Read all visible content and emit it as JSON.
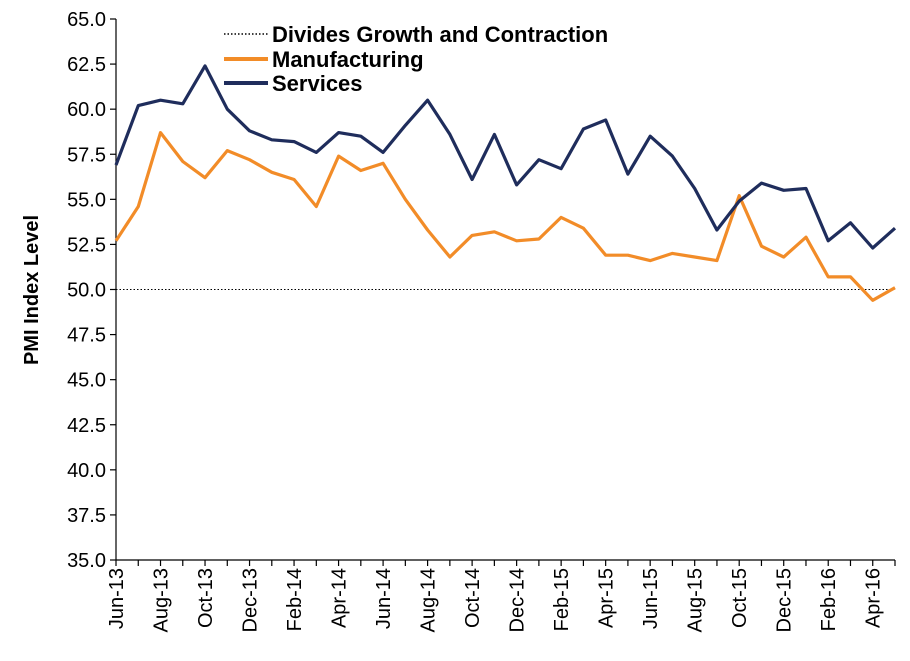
{
  "chart_data": {
    "type": "line",
    "ylabel": "PMI Index Level",
    "xlabel": "",
    "title": "",
    "ylim": [
      35.0,
      65.0
    ],
    "yticks": [
      "35.0",
      "37.5",
      "40.0",
      "42.5",
      "45.0",
      "47.5",
      "50.0",
      "52.5",
      "55.0",
      "57.5",
      "60.0",
      "62.5",
      "65.0"
    ],
    "x": [
      "Jun-13",
      "Jul-13",
      "Aug-13",
      "Sep-13",
      "Oct-13",
      "Nov-13",
      "Dec-13",
      "Jan-14",
      "Feb-14",
      "Mar-14",
      "Apr-14",
      "May-14",
      "Jun-14",
      "Jul-14",
      "Aug-14",
      "Sep-14",
      "Oct-14",
      "Nov-14",
      "Dec-14",
      "Jan-15",
      "Feb-15",
      "Mar-15",
      "Apr-15",
      "May-15",
      "Jun-15",
      "Jul-15",
      "Aug-15",
      "Sep-15",
      "Oct-15",
      "Nov-15",
      "Dec-15",
      "Jan-16",
      "Feb-16",
      "Mar-16",
      "Apr-16",
      "May-16"
    ],
    "xtick_labels": [
      "Jun-13",
      "Aug-13",
      "Oct-13",
      "Dec-13",
      "Feb-14",
      "Apr-14",
      "Jun-14",
      "Aug-14",
      "Oct-14",
      "Dec-14",
      "Feb-15",
      "Apr-15",
      "Jun-15",
      "Aug-15",
      "Oct-15",
      "Dec-15",
      "Feb-16",
      "Apr-16"
    ],
    "reference_line": {
      "name": "Divides Growth and Contraction",
      "value": 50.0,
      "color": "#000000",
      "style": "dotted"
    },
    "series": [
      {
        "name": "Manufacturing",
        "color": "#F28C28",
        "values": [
          52.7,
          54.6,
          58.7,
          57.1,
          56.2,
          57.7,
          57.2,
          56.5,
          56.1,
          54.6,
          57.4,
          56.6,
          57.0,
          55.0,
          53.3,
          51.8,
          53.0,
          53.2,
          52.7,
          52.8,
          54.0,
          53.4,
          51.9,
          51.9,
          51.6,
          52.0,
          51.8,
          51.6,
          55.2,
          52.4,
          51.8,
          52.9,
          50.7,
          50.7,
          49.4,
          50.1
        ]
      },
      {
        "name": "Services",
        "color": "#1F2D5C",
        "values": [
          56.9,
          60.2,
          60.5,
          60.3,
          62.4,
          60.0,
          58.8,
          58.3,
          58.2,
          57.6,
          58.7,
          58.5,
          57.6,
          59.1,
          60.5,
          58.6,
          56.1,
          58.6,
          55.8,
          57.2,
          56.7,
          58.9,
          59.4,
          56.4,
          58.5,
          57.4,
          55.6,
          53.3,
          54.9,
          55.9,
          55.5,
          55.6,
          52.7,
          53.7,
          52.3,
          53.4
        ]
      }
    ],
    "legend": {
      "position": "top"
    },
    "grid": false
  }
}
